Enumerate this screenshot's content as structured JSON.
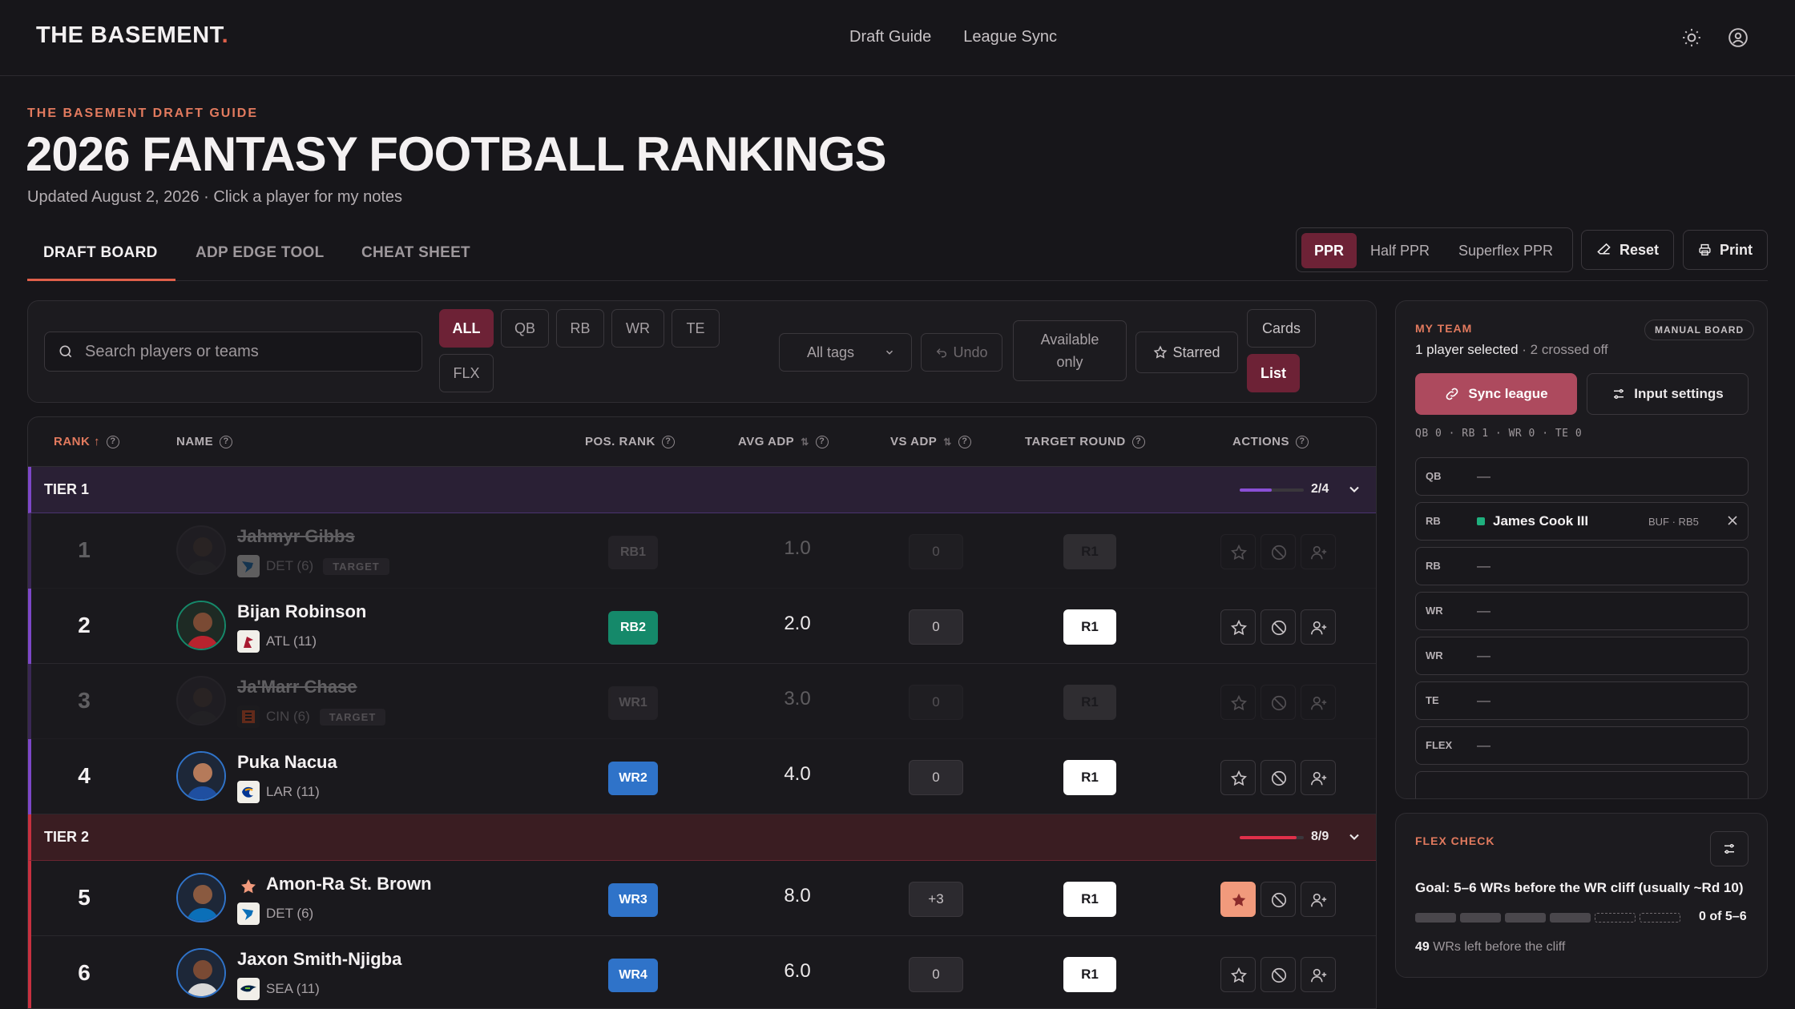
{
  "nav": {
    "logo": "THE BASEMENT",
    "logo_dot": ".",
    "links": [
      "Draft Guide",
      "League Sync"
    ],
    "icons": [
      "sun-icon",
      "user-circle-icon"
    ]
  },
  "header": {
    "eyebrow": "THE BASEMENT DRAFT GUIDE",
    "title": "2026 FANTASY FOOTBALL RANKINGS",
    "subtitle": "Updated August 2, 2026 · Click a player for my notes"
  },
  "tabs": [
    "DRAFT BOARD",
    "ADP EDGE TOOL",
    "CHEAT SHEET"
  ],
  "active_tab": "DRAFT BOARD",
  "scoring": {
    "options": [
      "PPR",
      "Half PPR",
      "Superflex PPR"
    ],
    "active": "PPR"
  },
  "actions": {
    "reset": "Reset",
    "print": "Print"
  },
  "filters": {
    "search_placeholder": "Search players or teams",
    "positions": [
      "ALL",
      "QB",
      "RB",
      "WR",
      "TE",
      "FLX"
    ],
    "active_position": "ALL",
    "tags": "All tags",
    "undo": "Undo",
    "available_line1": "Available",
    "available_line2": "only",
    "starred": "Starred",
    "view_cards": "Cards",
    "view_list": "List"
  },
  "table": {
    "headers": {
      "rank": "RANK ↑",
      "name": "NAME",
      "pos_rank": "POS. RANK",
      "avg_adp": "AVG ADP",
      "vs_adp": "VS ADP",
      "target_round": "TARGET ROUND",
      "actions": "ACTIONS"
    },
    "tiers": [
      {
        "label": "TIER 1",
        "count": "2/4",
        "color": "#8a4fd6",
        "progress": 0.5
      },
      {
        "label": "TIER 2",
        "count": "8/9",
        "color": "#e0304a",
        "progress": 0.89
      }
    ],
    "players": [
      {
        "rank": "1",
        "name": "Jahmyr Gibbs",
        "team": "DET (6)",
        "tag": "TARGET",
        "pos": "RB1",
        "adp": "1.0",
        "vs": "0",
        "round": "R1",
        "crossed": true,
        "starred": false
      },
      {
        "rank": "2",
        "name": "Bijan Robinson",
        "team": "ATL (11)",
        "tag": "",
        "pos": "RB2",
        "adp": "2.0",
        "vs": "0",
        "round": "R1",
        "crossed": false,
        "starred": false
      },
      {
        "rank": "3",
        "name": "Ja'Marr Chase",
        "team": "CIN (6)",
        "tag": "TARGET",
        "pos": "WR1",
        "adp": "3.0",
        "vs": "0",
        "round": "R1",
        "crossed": true,
        "starred": false
      },
      {
        "rank": "4",
        "name": "Puka Nacua",
        "team": "LAR (11)",
        "tag": "",
        "pos": "WR2",
        "adp": "4.0",
        "vs": "0",
        "round": "R1",
        "crossed": false,
        "starred": false
      },
      {
        "rank": "5",
        "name": "Amon-Ra St. Brown",
        "team": "DET (6)",
        "tag": "",
        "pos": "WR3",
        "adp": "8.0",
        "vs": "+3",
        "round": "R1",
        "crossed": false,
        "starred": true
      },
      {
        "rank": "6",
        "name": "Jaxon Smith-Njigba",
        "team": "SEA (11)",
        "tag": "",
        "pos": "WR4",
        "adp": "6.0",
        "vs": "0",
        "round": "R1",
        "crossed": false,
        "starred": false
      }
    ]
  },
  "colors": {
    "rb": "#15896a",
    "wr": "#2f73c9",
    "accent": "#6d2236",
    "eyebrow": "#e27a5e"
  },
  "my_team": {
    "eyebrow": "MY TEAM",
    "badge": "MANUAL BOARD",
    "selected": "1 player selected",
    "crossed": " · 2 crossed off",
    "sync": "Sync league",
    "settings": "Input settings",
    "counts": "QB 0 · RB 1 · WR 0 · TE 0",
    "slots": [
      {
        "label": "QB",
        "value": "—"
      },
      {
        "label": "RB",
        "value": "James Cook III",
        "meta": "BUF · RB5"
      },
      {
        "label": "RB",
        "value": "—"
      },
      {
        "label": "WR",
        "value": "—"
      },
      {
        "label": "WR",
        "value": "—"
      },
      {
        "label": "TE",
        "value": "—"
      },
      {
        "label": "FLEX",
        "value": "—"
      }
    ]
  },
  "flex_check": {
    "eyebrow": "FLEX CHECK",
    "goal": "Goal: 5–6 WRs before the WR cliff (usually ~Rd 10)",
    "progress_text": "0 of 5–6",
    "left_count": "49",
    "left_text": " WRs left before the cliff"
  }
}
